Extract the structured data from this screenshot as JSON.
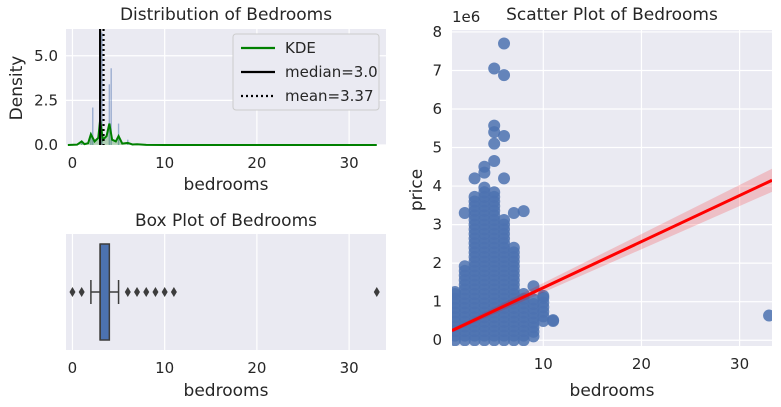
{
  "chart_data": [
    {
      "id": "dist",
      "type": "histogram+kde",
      "title": "Distribution of Bedrooms",
      "xlabel": "bedrooms",
      "ylabel": "Density",
      "xlim": [
        -0.7,
        34
      ],
      "ylim": [
        0,
        6.5
      ],
      "xticks": [
        0,
        10,
        20,
        30
      ],
      "yticks": [
        0.0,
        2.5,
        5.0
      ],
      "ytick_labels": [
        "0.0",
        "2.5",
        "5.0"
      ],
      "grid": true,
      "legend_position": "top-right",
      "legend": [
        {
          "label": "KDE",
          "color": "#008000",
          "style": "solid"
        },
        {
          "label": "median=3.0",
          "color": "#000000",
          "style": "solid"
        },
        {
          "label": "mean=3.37",
          "color": "#000000",
          "style": "dotted"
        }
      ],
      "median": 3.0,
      "mean": 3.37,
      "hist_bars": [
        {
          "x": 1.0,
          "value": 0.25
        },
        {
          "x": 2.0,
          "value": 0.7
        },
        {
          "x": 2.2,
          "value": 2.1
        },
        {
          "x": 3.0,
          "value": 2.9
        },
        {
          "x": 3.2,
          "value": 6.3
        },
        {
          "x": 4.0,
          "value": 3.4
        },
        {
          "x": 4.2,
          "value": 4.3
        },
        {
          "x": 5.0,
          "value": 1.2
        },
        {
          "x": 6.0,
          "value": 0.3
        },
        {
          "x": 7.0,
          "value": 0.08
        }
      ],
      "kde": [
        [
          -0.5,
          0
        ],
        [
          0.5,
          0.02
        ],
        [
          1,
          0.2
        ],
        [
          1.3,
          0.05
        ],
        [
          1.7,
          0.1
        ],
        [
          2,
          0.6
        ],
        [
          2.4,
          0.2
        ],
        [
          2.8,
          0.4
        ],
        [
          3,
          1.4
        ],
        [
          3.3,
          0.3
        ],
        [
          3.7,
          0.5
        ],
        [
          4,
          1.2
        ],
        [
          4.3,
          0.3
        ],
        [
          4.7,
          0.2
        ],
        [
          5,
          0.5
        ],
        [
          5.4,
          0.08
        ],
        [
          6,
          0.12
        ],
        [
          6.5,
          0.03
        ],
        [
          7,
          0.04
        ],
        [
          8,
          0.01
        ],
        [
          10,
          0
        ],
        [
          33,
          0
        ]
      ],
      "color_hist": "#4c72b0",
      "color_kde": "#008000"
    },
    {
      "id": "box",
      "type": "box",
      "title": "Box Plot of Bedrooms",
      "xlabel": "bedrooms",
      "xlim": [
        -0.7,
        34
      ],
      "xticks": [
        0,
        10,
        20,
        30
      ],
      "grid": true,
      "q1": 3,
      "median": 3,
      "q3": 4,
      "whisker_low": 2,
      "whisker_high": 5,
      "fliers": [
        0,
        1,
        6,
        7,
        8,
        9,
        10,
        11,
        33
      ],
      "color": "#4c72b0"
    },
    {
      "id": "scatter",
      "type": "scatter",
      "title": "Scatter Plot of Bedrooms",
      "xlabel": "bedrooms",
      "ylabel": "price",
      "offset_label": "1e6",
      "xlim": [
        0.7,
        33.3
      ],
      "ylim": [
        -0.15,
        8.05
      ],
      "xticks": [
        10,
        20,
        30
      ],
      "yticks": [
        0,
        1,
        2,
        3,
        4,
        5,
        6,
        7,
        8
      ],
      "grid": true,
      "color": "#4c72b0",
      "regression": {
        "x0": 0.7,
        "y0": 0.25,
        "x1": 33.3,
        "y1": 4.15,
        "color": "#ff0000"
      },
      "ci_band": {
        "x": [
          0.7,
          33.3
        ],
        "lo": [
          0.2,
          3.85
        ],
        "hi": [
          0.3,
          4.45
        ]
      },
      "columns": [
        {
          "x": 0,
          "lo": 0.0,
          "hi": 1.25
        },
        {
          "x": 1,
          "lo": 0.0,
          "hi": 1.3
        },
        {
          "x": 2,
          "lo": 0.0,
          "hi": 2.0
        },
        {
          "x": 3,
          "lo": 0.0,
          "hi": 3.8
        },
        {
          "x": 4,
          "lo": 0.0,
          "hi": 4.0
        },
        {
          "x": 5,
          "lo": 0.0,
          "hi": 3.9
        },
        {
          "x": 6,
          "lo": 0.0,
          "hi": 3.2
        },
        {
          "x": 7,
          "lo": 0.0,
          "hi": 2.4
        },
        {
          "x": 8,
          "lo": 0.0,
          "hi": 1.25
        },
        {
          "x": 9,
          "lo": 0.1,
          "hi": 1.1
        },
        {
          "x": 10,
          "lo": 0.5,
          "hi": 1.2
        },
        {
          "x": 11,
          "lo": 0.5,
          "hi": 0.55
        }
      ],
      "points": [
        [
          6,
          7.7
        ],
        [
          5,
          7.05
        ],
        [
          6,
          6.88
        ],
        [
          5,
          5.57
        ],
        [
          5,
          5.4
        ],
        [
          6,
          5.3
        ],
        [
          5,
          5.1
        ],
        [
          4,
          4.5
        ],
        [
          5,
          4.65
        ],
        [
          6,
          4.2
        ],
        [
          3,
          4.2
        ],
        [
          4,
          4.35
        ],
        [
          7,
          3.3
        ],
        [
          8,
          3.35
        ],
        [
          2,
          3.3
        ],
        [
          1,
          1.25
        ],
        [
          0,
          1.2
        ],
        [
          9,
          1.4
        ],
        [
          10,
          1.15
        ],
        [
          33,
          0.64
        ],
        [
          11,
          0.52
        ]
      ]
    }
  ]
}
